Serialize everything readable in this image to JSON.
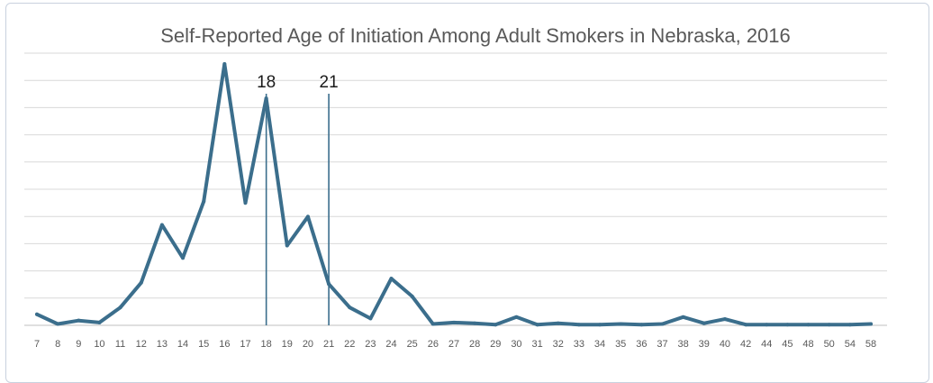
{
  "chart_data": {
    "type": "line",
    "title": "Self-Reported Age of Initiation Among Adult Smokers in Nebraska, 2016",
    "xlabel": "",
    "ylabel": "",
    "ylim": [
      0,
      19
    ],
    "grid": true,
    "legend": "none",
    "categories": [
      "7",
      "8",
      "9",
      "10",
      "11",
      "12",
      "13",
      "14",
      "15",
      "16",
      "17",
      "18",
      "19",
      "20",
      "21",
      "22",
      "23",
      "24",
      "25",
      "26",
      "27",
      "28",
      "29",
      "30",
      "31",
      "32",
      "33",
      "34",
      "35",
      "36",
      "37",
      "38",
      "39",
      "40",
      "42",
      "44",
      "45",
      "48",
      "50",
      "54",
      "58"
    ],
    "series": [
      {
        "values": [
          0.8,
          0.1,
          0.35,
          0.2,
          1.3,
          3.1,
          7.3,
          4.9,
          9.0,
          19.0,
          8.9,
          16.5,
          5.8,
          7.9,
          3.0,
          1.3,
          0.5,
          3.4,
          2.1,
          0.1,
          0.2,
          0.15,
          0.05,
          0.6,
          0.05,
          0.15,
          0.05,
          0.05,
          0.1,
          0.05,
          0.1,
          0.6,
          0.15,
          0.45,
          0.05,
          0.05,
          0.05,
          0.05,
          0.05,
          0.05,
          0.1
        ],
        "color": "#3b6e8c"
      }
    ],
    "annotations": [
      {
        "label": "18",
        "x": "18"
      },
      {
        "label": "21",
        "x": "21"
      }
    ],
    "colors": {
      "line": "#3b6e8c",
      "marker": "#3b6e8c",
      "grid": "#d9d9d9",
      "axis": "#bfbfbf"
    }
  }
}
